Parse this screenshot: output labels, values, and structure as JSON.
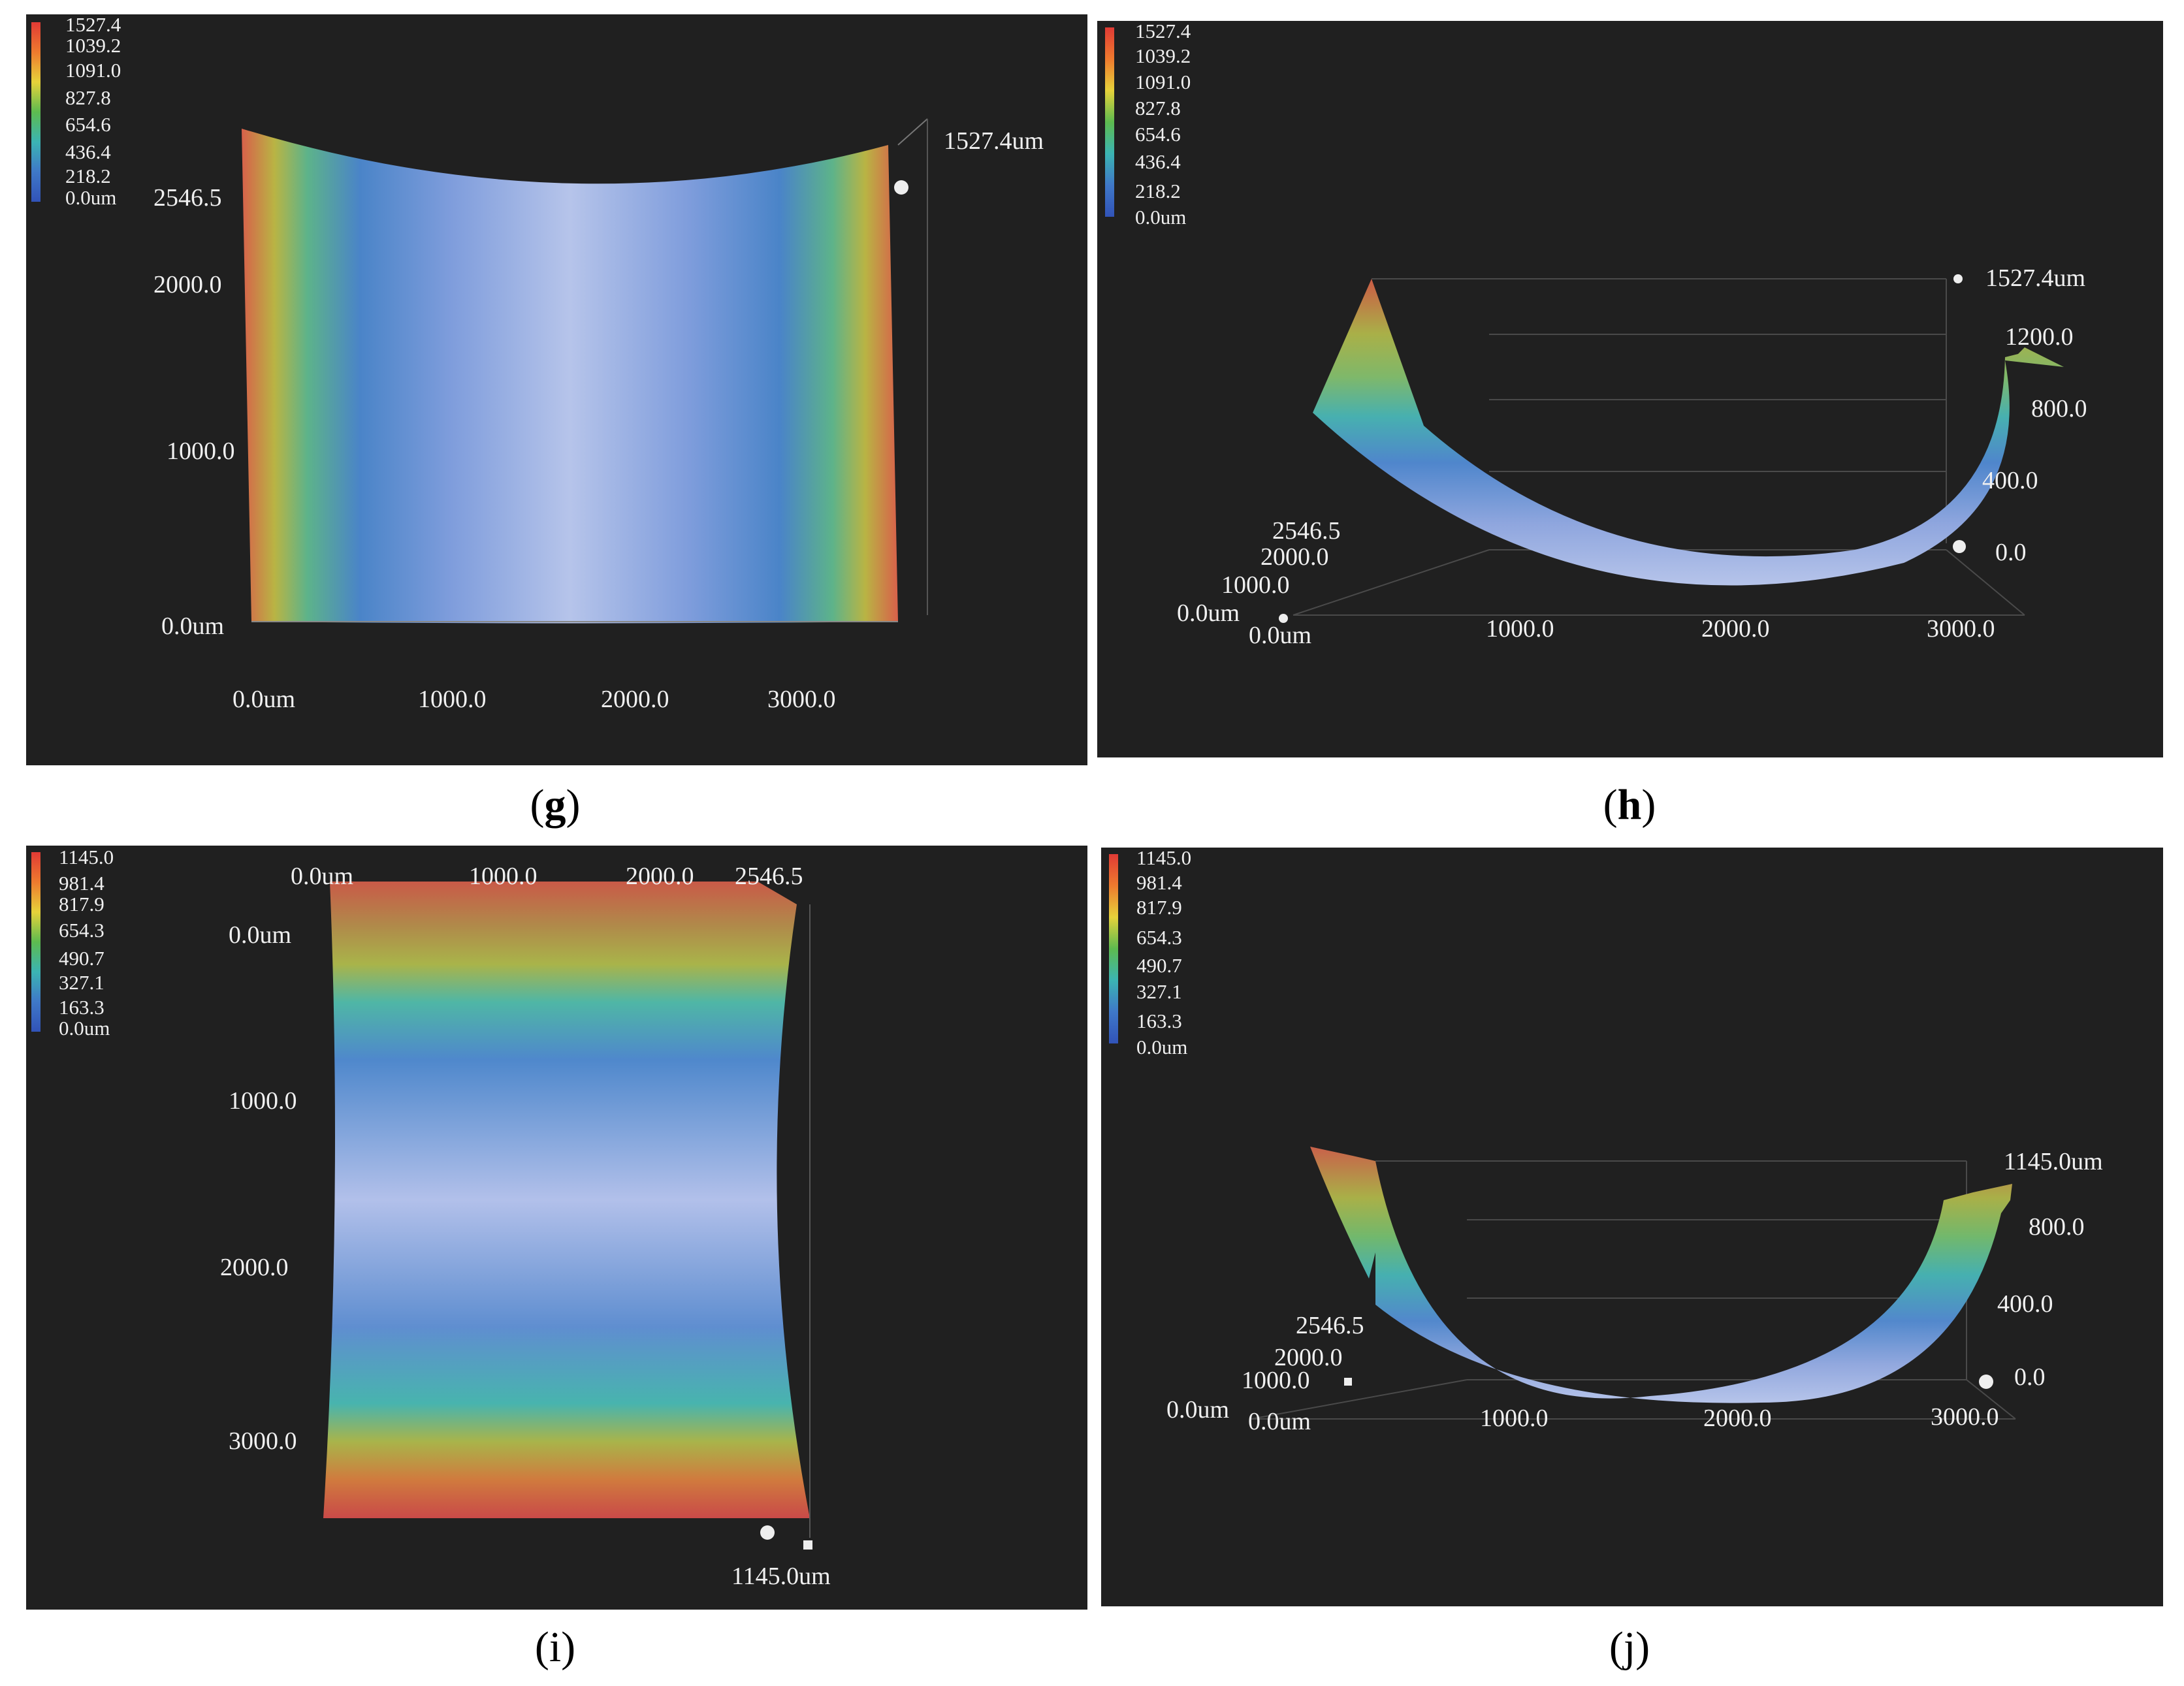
{
  "captions": {
    "g": "g",
    "h": "h",
    "i": "i",
    "j": "j"
  },
  "colors": {
    "background": "#202020",
    "scale": [
      "#e03a35",
      "#ef7a2e",
      "#e6d23a",
      "#5dbb4f",
      "#3bb4b3",
      "#3f78c8",
      "#3153b8"
    ],
    "surface_low": "#b6c4ea",
    "surface_mid": "#5c8ccc"
  },
  "panels": {
    "g": {
      "legend": [
        "1527.4",
        "1039.2",
        "1091.0",
        "827.8",
        "654.6",
        "436.4",
        "218.2",
        "0.0um"
      ],
      "z_max": "1527.4um",
      "y_ticks": [
        "2546.5",
        "2000.0",
        "1000.0",
        "0.0um"
      ],
      "x_ticks": [
        "0.0um",
        "1000.0",
        "2000.0",
        "3000.0"
      ]
    },
    "h": {
      "legend": [
        "1527.4",
        "1039.2",
        "1091.0",
        "827.8",
        "654.6",
        "436.4",
        "218.2",
        "0.0um"
      ],
      "z_ticks": [
        "1527.4um",
        "1200.0",
        "800.0",
        "400.0",
        "0.0"
      ],
      "y_ticks": [
        "2546.5",
        "2000.0",
        "1000.0",
        "0.0um"
      ],
      "x_ticks": [
        "0.0um",
        "1000.0",
        "2000.0",
        "3000.0"
      ]
    },
    "i": {
      "legend": [
        "1145.0",
        "981.4",
        "817.9",
        "654.3",
        "490.7",
        "327.1",
        "163.3",
        "0.0um"
      ],
      "x_ticks": [
        "0.0um",
        "1000.0",
        "2000.0",
        "2546.5"
      ],
      "y_ticks": [
        "0.0um",
        "1000.0",
        "2000.0",
        "3000.0"
      ],
      "z_max": "1145.0um"
    },
    "j": {
      "legend": [
        "1145.0",
        "981.4",
        "817.9",
        "654.3",
        "490.7",
        "327.1",
        "163.3",
        "0.0um"
      ],
      "z_ticks": [
        "1145.0um",
        "800.0",
        "400.0",
        "0.0"
      ],
      "y_ticks": [
        "2546.5",
        "2000.0",
        "1000.0",
        "0.0um"
      ],
      "x_ticks": [
        "0.0um",
        "1000.0",
        "2000.0",
        "3000.0"
      ]
    }
  }
}
